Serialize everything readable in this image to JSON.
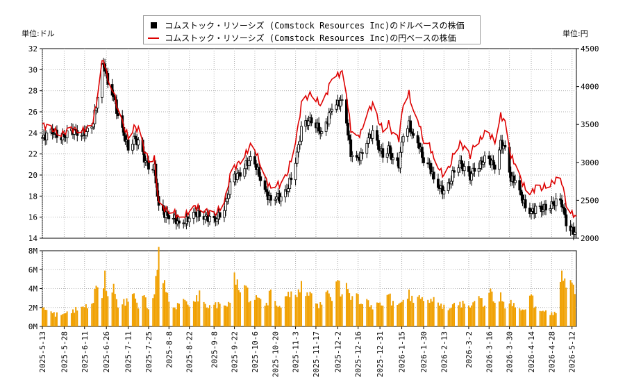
{
  "chart_data": {
    "type": "candlestick",
    "legend": {
      "placement": "top-center",
      "entries": [
        {
          "label": "コムストック・リソーシズ (Comstock Resources Inc)のドルベースの株価",
          "color": "#000000",
          "marker": "square"
        },
        {
          "label": "コムストック・リソーシズ (Comstock Resources Inc)の円ベースの株価",
          "color": "#dd0000",
          "marker": "line"
        }
      ]
    },
    "left_unit": "単位:ドル",
    "right_unit": "単位:円",
    "price_axis_left": {
      "min": 14,
      "max": 32,
      "ticks": [
        "14",
        "16",
        "18",
        "20",
        "22",
        "24",
        "26",
        "28",
        "30",
        "32"
      ]
    },
    "price_axis_right": {
      "min": 2000,
      "max": 4500,
      "ticks": [
        "2000",
        "2500",
        "3000",
        "3500",
        "4000",
        "4500"
      ]
    },
    "volume_axis": {
      "min": 0,
      "max": 8,
      "ticks": [
        "0M",
        "2M",
        "4M",
        "6M",
        "8M"
      ]
    },
    "x_axis": {
      "start": "2025-05-13",
      "end": "2026-05-15",
      "tick_labels": [
        "2025-5-13",
        "2025-5-28",
        "2025-6-11",
        "2025-6-26",
        "2025-7-11",
        "2025-7-25",
        "2025-8-8",
        "2025-8-22",
        "2025-9-8",
        "2025-9-22",
        "2025-10-6",
        "2025-10-20",
        "2025-11-3",
        "2025-11-17",
        "2025-12-2",
        "2025-12-16",
        "2025-12-31",
        "2026-1-15",
        "2026-1-30",
        "2026-2-13",
        "2026-3-2",
        "2026-3-16",
        "2026-3-30",
        "2026-4-14",
        "2026-4-28",
        "2026-5-12"
      ]
    },
    "grid": true,
    "usd_series": [
      [
        "2025-05-13",
        23.5
      ],
      [
        "2025-05-20",
        24.1
      ],
      [
        "2025-05-27",
        23.6
      ],
      [
        "2025-06-03",
        24.2
      ],
      [
        "2025-06-10",
        23.9
      ],
      [
        "2025-06-16",
        24.5
      ],
      [
        "2025-06-19",
        26.5
      ],
      [
        "2025-06-23",
        30.5
      ],
      [
        "2025-06-25",
        30.2
      ],
      [
        "2025-06-27",
        28.6
      ],
      [
        "2025-07-01",
        27.5
      ],
      [
        "2025-07-04",
        25.5
      ],
      [
        "2025-07-08",
        23.8
      ],
      [
        "2025-07-11",
        22.6
      ],
      [
        "2025-07-15",
        23.5
      ],
      [
        "2025-07-18",
        23.0
      ],
      [
        "2025-07-22",
        21.5
      ],
      [
        "2025-07-25",
        20.9
      ],
      [
        "2025-07-29",
        20.7
      ],
      [
        "2025-08-01",
        16.8
      ],
      [
        "2025-08-05",
        16.3
      ],
      [
        "2025-08-08",
        16.1
      ],
      [
        "2025-08-12",
        15.9
      ],
      [
        "2025-08-15",
        15.3
      ],
      [
        "2025-08-19",
        15.6
      ],
      [
        "2025-08-22",
        15.9
      ],
      [
        "2025-08-26",
        16.4
      ],
      [
        "2025-08-29",
        16.2
      ],
      [
        "2025-09-03",
        16.0
      ],
      [
        "2025-09-08",
        15.6
      ],
      [
        "2025-09-12",
        16.3
      ],
      [
        "2025-09-16",
        17.2
      ],
      [
        "2025-09-19",
        19.0
      ],
      [
        "2025-09-22",
        19.8
      ],
      [
        "2025-09-26",
        20.2
      ],
      [
        "2025-09-30",
        21.0
      ],
      [
        "2025-10-03",
        21.5
      ],
      [
        "2025-10-07",
        20.8
      ],
      [
        "2025-10-10",
        19.6
      ],
      [
        "2025-10-14",
        18.2
      ],
      [
        "2025-10-17",
        17.6
      ],
      [
        "2025-10-21",
        18.0
      ],
      [
        "2025-10-24",
        17.8
      ],
      [
        "2025-10-28",
        18.5
      ],
      [
        "2025-10-31",
        19.8
      ],
      [
        "2025-11-04",
        22.0
      ],
      [
        "2025-11-07",
        24.3
      ],
      [
        "2025-11-11",
        25.0
      ],
      [
        "2025-11-14",
        25.3
      ],
      [
        "2025-11-18",
        24.6
      ],
      [
        "2025-11-21",
        23.8
      ],
      [
        "2025-11-25",
        25.2
      ],
      [
        "2025-11-28",
        26.5
      ],
      [
        "2025-12-02",
        26.8
      ],
      [
        "2025-12-05",
        27.0
      ],
      [
        "2025-12-08",
        25.0
      ],
      [
        "2025-12-11",
        22.0
      ],
      [
        "2025-12-15",
        21.5
      ],
      [
        "2025-12-18",
        21.8
      ],
      [
        "2025-12-22",
        23.3
      ],
      [
        "2025-12-26",
        24.0
      ],
      [
        "2025-12-30",
        22.6
      ],
      [
        "2026-01-02",
        22.0
      ],
      [
        "2026-01-06",
        22.5
      ],
      [
        "2026-01-09",
        21.3
      ],
      [
        "2026-01-13",
        21.0
      ],
      [
        "2026-01-16",
        24.0
      ],
      [
        "2026-01-20",
        24.8
      ],
      [
        "2026-01-23",
        23.5
      ],
      [
        "2026-01-27",
        22.8
      ],
      [
        "2026-01-30",
        21.3
      ],
      [
        "2026-02-03",
        20.9
      ],
      [
        "2026-02-06",
        19.6
      ],
      [
        "2026-02-10",
        18.8
      ],
      [
        "2026-02-13",
        18.4
      ],
      [
        "2026-02-17",
        19.2
      ],
      [
        "2026-02-20",
        20.5
      ],
      [
        "2026-02-24",
        21.2
      ],
      [
        "2026-02-27",
        20.5
      ],
      [
        "2026-03-03",
        19.8
      ],
      [
        "2026-03-06",
        20.7
      ],
      [
        "2026-03-10",
        21.0
      ],
      [
        "2026-03-13",
        21.5
      ],
      [
        "2026-03-17",
        21.3
      ],
      [
        "2026-03-20",
        20.8
      ],
      [
        "2026-03-24",
        23.0
      ],
      [
        "2026-03-27",
        22.5
      ],
      [
        "2026-03-31",
        19.6
      ],
      [
        "2026-04-03",
        19.5
      ],
      [
        "2026-04-07",
        18.0
      ],
      [
        "2026-04-10",
        17.0
      ],
      [
        "2026-04-14",
        16.5
      ],
      [
        "2026-04-17",
        16.8
      ],
      [
        "2026-04-21",
        16.7
      ],
      [
        "2026-04-24",
        17.0
      ],
      [
        "2026-04-28",
        17.2
      ],
      [
        "2026-05-01",
        17.4
      ],
      [
        "2026-05-05",
        17.3
      ],
      [
        "2026-05-08",
        15.5
      ],
      [
        "2026-05-12",
        14.7
      ],
      [
        "2026-05-15",
        14.5
      ]
    ],
    "jpy_series": [
      [
        "2025-05-13",
        3500
      ],
      [
        "2025-05-20",
        3430
      ],
      [
        "2025-05-27",
        3380
      ],
      [
        "2025-06-03",
        3440
      ],
      [
        "2025-06-10",
        3420
      ],
      [
        "2025-06-16",
        3480
      ],
      [
        "2025-06-19",
        3760
      ],
      [
        "2025-06-23",
        4330
      ],
      [
        "2025-06-25",
        4300
      ],
      [
        "2025-06-27",
        4080
      ],
      [
        "2025-07-01",
        3930
      ],
      [
        "2025-07-04",
        3680
      ],
      [
        "2025-07-08",
        3470
      ],
      [
        "2025-07-11",
        3340
      ],
      [
        "2025-07-15",
        3470
      ],
      [
        "2025-07-18",
        3430
      ],
      [
        "2025-07-22",
        3160
      ],
      [
        "2025-07-25",
        3050
      ],
      [
        "2025-07-29",
        3050
      ],
      [
        "2025-08-01",
        2440
      ],
      [
        "2025-08-05",
        2390
      ],
      [
        "2025-08-08",
        2360
      ],
      [
        "2025-08-12",
        2340
      ],
      [
        "2025-08-15",
        2260
      ],
      [
        "2025-08-19",
        2300
      ],
      [
        "2025-08-22",
        2350
      ],
      [
        "2025-08-26",
        2420
      ],
      [
        "2025-08-29",
        2390
      ],
      [
        "2025-09-03",
        2360
      ],
      [
        "2025-09-08",
        2300
      ],
      [
        "2025-09-12",
        2400
      ],
      [
        "2025-09-16",
        2550
      ],
      [
        "2025-09-19",
        2810
      ],
      [
        "2025-09-22",
        2930
      ],
      [
        "2025-09-26",
        3020
      ],
      [
        "2025-09-30",
        3120
      ],
      [
        "2025-10-03",
        3220
      ],
      [
        "2025-10-07",
        3130
      ],
      [
        "2025-10-10",
        2960
      ],
      [
        "2025-10-14",
        2760
      ],
      [
        "2025-10-17",
        2660
      ],
      [
        "2025-10-21",
        2710
      ],
      [
        "2025-10-24",
        2710
      ],
      [
        "2025-10-28",
        2830
      ],
      [
        "2025-10-31",
        3040
      ],
      [
        "2025-11-04",
        3390
      ],
      [
        "2025-11-07",
        3760
      ],
      [
        "2025-11-11",
        3860
      ],
      [
        "2025-11-14",
        3920
      ],
      [
        "2025-11-18",
        3810
      ],
      [
        "2025-11-21",
        3740
      ],
      [
        "2025-11-25",
        3940
      ],
      [
        "2025-11-28",
        4130
      ],
      [
        "2025-12-02",
        4150
      ],
      [
        "2025-12-05",
        4190
      ],
      [
        "2025-12-08",
        3900
      ],
      [
        "2025-12-11",
        3430
      ],
      [
        "2025-12-15",
        3330
      ],
      [
        "2025-12-18",
        3390
      ],
      [
        "2025-12-22",
        3660
      ],
      [
        "2025-12-26",
        3760
      ],
      [
        "2025-12-30",
        3540
      ],
      [
        "2026-01-02",
        3440
      ],
      [
        "2026-01-06",
        3520
      ],
      [
        "2026-01-09",
        3350
      ],
      [
        "2026-01-13",
        3310
      ],
      [
        "2026-01-16",
        3790
      ],
      [
        "2026-01-20",
        3910
      ],
      [
        "2026-01-23",
        3650
      ],
      [
        "2026-01-27",
        3510
      ],
      [
        "2026-01-30",
        3270
      ],
      [
        "2026-02-03",
        3230
      ],
      [
        "2026-02-06",
        3050
      ],
      [
        "2026-02-10",
        2910
      ],
      [
        "2026-02-13",
        2820
      ],
      [
        "2026-02-17",
        2940
      ],
      [
        "2026-02-20",
        3140
      ],
      [
        "2026-02-24",
        3260
      ],
      [
        "2026-02-27",
        3180
      ],
      [
        "2026-03-03",
        3080
      ],
      [
        "2026-03-06",
        3250
      ],
      [
        "2026-03-10",
        3300
      ],
      [
        "2026-03-13",
        3380
      ],
      [
        "2026-03-17",
        3360
      ],
      [
        "2026-03-20",
        3280
      ],
      [
        "2026-03-24",
        3620
      ],
      [
        "2026-03-27",
        3530
      ],
      [
        "2026-03-31",
        3080
      ],
      [
        "2026-04-03",
        2980
      ],
      [
        "2026-04-07",
        2770
      ],
      [
        "2026-04-10",
        2650
      ],
      [
        "2026-04-14",
        2600
      ],
      [
        "2026-04-17",
        2670
      ],
      [
        "2026-04-21",
        2650
      ],
      [
        "2026-04-24",
        2700
      ],
      [
        "2026-04-28",
        2730
      ],
      [
        "2026-05-01",
        2760
      ],
      [
        "2026-05-05",
        2750
      ],
      [
        "2026-05-08",
        2460
      ],
      [
        "2026-05-12",
        2320
      ],
      [
        "2026-05-15",
        2290
      ]
    ],
    "volume_series": [
      [
        "2025-05-13",
        2.0
      ],
      [
        "2025-05-20",
        1.4
      ],
      [
        "2025-05-27",
        1.3
      ],
      [
        "2025-06-03",
        1.8
      ],
      [
        "2025-06-10",
        2.1
      ],
      [
        "2025-06-16",
        2.4
      ],
      [
        "2025-06-19",
        4.3
      ],
      [
        "2025-06-23",
        3.0
      ],
      [
        "2025-06-25",
        5.9
      ],
      [
        "2025-06-27",
        3.2
      ],
      [
        "2025-07-01",
        4.5
      ],
      [
        "2025-07-04",
        2.0
      ],
      [
        "2025-07-08",
        2.9
      ],
      [
        "2025-07-11",
        2.6
      ],
      [
        "2025-07-15",
        3.5
      ],
      [
        "2025-07-18",
        1.9
      ],
      [
        "2025-07-22",
        3.3
      ],
      [
        "2025-07-25",
        1.8
      ],
      [
        "2025-07-29",
        3.4
      ],
      [
        "2025-08-01",
        8.4
      ],
      [
        "2025-08-05",
        4.9
      ],
      [
        "2025-08-08",
        2.6
      ],
      [
        "2025-08-12",
        2.0
      ],
      [
        "2025-08-15",
        2.4
      ],
      [
        "2025-08-19",
        2.8
      ],
      [
        "2025-08-22",
        2.1
      ],
      [
        "2025-08-26",
        2.6
      ],
      [
        "2025-08-29",
        3.8
      ],
      [
        "2025-09-03",
        2.0
      ],
      [
        "2025-09-08",
        2.3
      ],
      [
        "2025-09-12",
        2.4
      ],
      [
        "2025-09-16",
        2.2
      ],
      [
        "2025-09-19",
        2.5
      ],
      [
        "2025-09-22",
        5.7
      ],
      [
        "2025-09-26",
        3.6
      ],
      [
        "2025-09-30",
        4.3
      ],
      [
        "2025-10-03",
        2.7
      ],
      [
        "2025-10-07",
        3.3
      ],
      [
        "2025-10-10",
        2.9
      ],
      [
        "2025-10-14",
        2.5
      ],
      [
        "2025-10-17",
        3.9
      ],
      [
        "2025-10-21",
        2.2
      ],
      [
        "2025-10-24",
        2.0
      ],
      [
        "2025-10-28",
        3.2
      ],
      [
        "2025-10-31",
        3.7
      ],
      [
        "2025-11-04",
        3.1
      ],
      [
        "2025-11-07",
        4.8
      ],
      [
        "2025-11-11",
        3.6
      ],
      [
        "2025-11-14",
        3.5
      ],
      [
        "2025-11-18",
        2.4
      ],
      [
        "2025-11-21",
        2.3
      ],
      [
        "2025-11-25",
        3.8
      ],
      [
        "2025-11-28",
        2.7
      ],
      [
        "2025-12-02",
        4.9
      ],
      [
        "2025-12-05",
        3.4
      ],
      [
        "2025-12-08",
        4.6
      ],
      [
        "2025-12-11",
        2.8
      ],
      [
        "2025-12-15",
        3.5
      ],
      [
        "2025-12-18",
        2.4
      ],
      [
        "2025-12-22",
        2.9
      ],
      [
        "2025-12-26",
        1.8
      ],
      [
        "2025-12-30",
        2.5
      ],
      [
        "2026-01-02",
        2.2
      ],
      [
        "2026-01-06",
        3.4
      ],
      [
        "2026-01-09",
        2.7
      ],
      [
        "2026-01-13",
        2.4
      ],
      [
        "2026-01-16",
        2.8
      ],
      [
        "2026-01-20",
        3.9
      ],
      [
        "2026-01-23",
        2.5
      ],
      [
        "2026-01-27",
        3.3
      ],
      [
        "2026-01-30",
        2.7
      ],
      [
        "2026-02-03",
        2.5
      ],
      [
        "2026-02-06",
        3.1
      ],
      [
        "2026-02-10",
        2.2
      ],
      [
        "2026-02-13",
        2.3
      ],
      [
        "2026-02-17",
        1.9
      ],
      [
        "2026-02-20",
        2.5
      ],
      [
        "2026-02-24",
        2.6
      ],
      [
        "2026-02-27",
        2.4
      ],
      [
        "2026-03-03",
        2.0
      ],
      [
        "2026-03-06",
        2.7
      ],
      [
        "2026-03-10",
        3.0
      ],
      [
        "2026-03-13",
        2.2
      ],
      [
        "2026-03-17",
        4.0
      ],
      [
        "2026-03-20",
        2.5
      ],
      [
        "2026-03-24",
        3.6
      ],
      [
        "2026-03-27",
        1.9
      ],
      [
        "2026-03-31",
        2.8
      ],
      [
        "2026-04-03",
        2.0
      ],
      [
        "2026-04-07",
        1.7
      ],
      [
        "2026-04-10",
        1.8
      ],
      [
        "2026-04-14",
        3.4
      ],
      [
        "2026-04-17",
        2.1
      ],
      [
        "2026-04-21",
        1.6
      ],
      [
        "2026-04-24",
        1.7
      ],
      [
        "2026-04-28",
        1.5
      ],
      [
        "2026-05-01",
        1.4
      ],
      [
        "2026-05-05",
        5.9
      ],
      [
        "2026-05-08",
        4.1
      ],
      [
        "2026-05-12",
        4.6
      ],
      [
        "2026-05-15",
        3.2
      ]
    ]
  }
}
